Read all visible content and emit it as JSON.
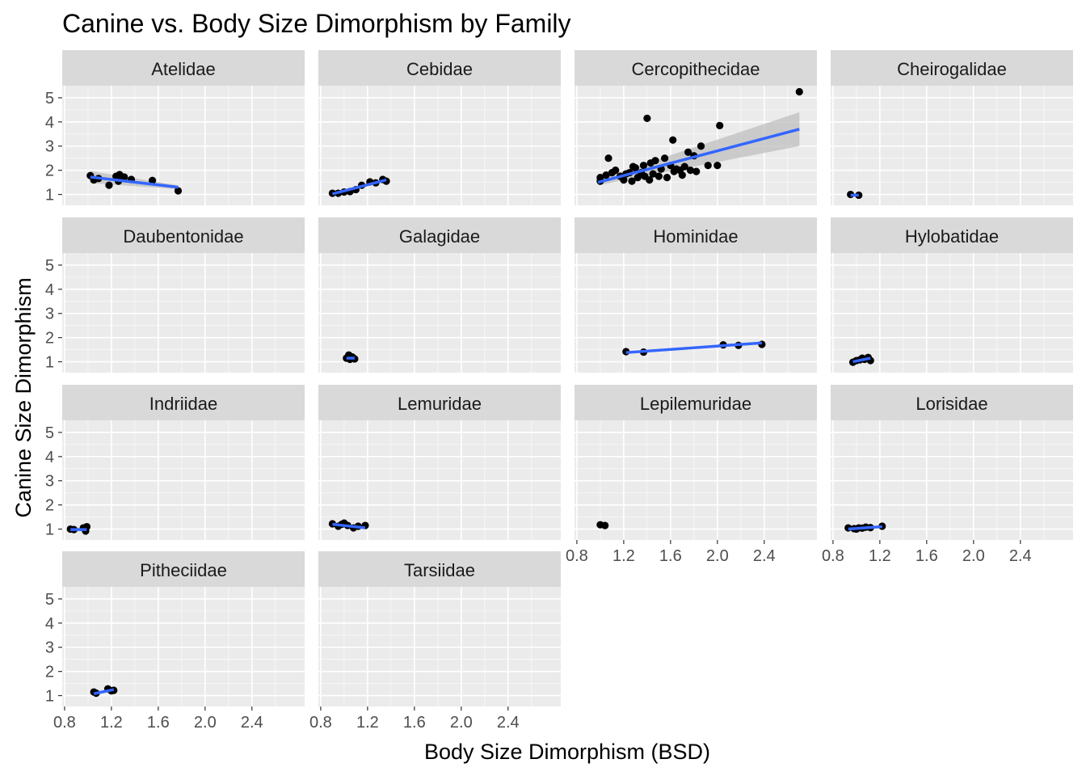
{
  "chart_data": {
    "type": "scatter",
    "title": "Canine vs. Body Size Dimorphism by Family",
    "xlabel": "Body Size Dimorphism (BSD)",
    "ylabel": "Canine Size Dimorphism",
    "xlim": [
      0.78,
      2.85
    ],
    "ylim": [
      0.55,
      5.5
    ],
    "x_ticks": [
      0.8,
      1.2,
      1.6,
      2.0,
      2.4
    ],
    "x_tick_labels": [
      "0.8",
      "1.2",
      "1.6",
      "2.0",
      "2.4"
    ],
    "y_ticks": [
      1,
      2,
      3,
      4,
      5
    ],
    "y_tick_labels": [
      "1",
      "2",
      "3",
      "4",
      "5"
    ],
    "grid": true,
    "smoother": "linear fit with confidence band",
    "colors": {
      "panel_bg": "#ebebeb",
      "grid_major": "#ffffff",
      "strip_bg": "#d9d9d9",
      "point": "#000000",
      "fit_line": "#3366ff",
      "ribbon": "#bfbfbf"
    },
    "facets": [
      {
        "name": "Atelidae",
        "points": [
          [
            1.02,
            1.78
          ],
          [
            1.05,
            1.6
          ],
          [
            1.09,
            1.66
          ],
          [
            1.18,
            1.38
          ],
          [
            1.24,
            1.75
          ],
          [
            1.26,
            1.55
          ],
          [
            1.27,
            1.82
          ],
          [
            1.31,
            1.72
          ],
          [
            1.37,
            1.62
          ],
          [
            1.55,
            1.58
          ],
          [
            1.77,
            1.15
          ]
        ],
        "fit": [
          [
            1.02,
            1.72
          ],
          [
            1.77,
            1.3
          ]
        ],
        "band": [
          0.25,
          0.08
        ]
      },
      {
        "name": "Cebidae",
        "points": [
          [
            0.9,
            1.05
          ],
          [
            0.95,
            1.05
          ],
          [
            1.0,
            1.1
          ],
          [
            1.05,
            1.12
          ],
          [
            1.1,
            1.2
          ],
          [
            1.15,
            1.38
          ],
          [
            1.22,
            1.52
          ],
          [
            1.27,
            1.48
          ],
          [
            1.33,
            1.62
          ],
          [
            1.36,
            1.55
          ]
        ],
        "fit": [
          [
            0.9,
            1.02
          ],
          [
            1.36,
            1.6
          ]
        ],
        "band": [
          0.08,
          0.03
        ]
      },
      {
        "name": "Cercopithecidae",
        "points": [
          [
            1.0,
            1.55
          ],
          [
            1.0,
            1.7
          ],
          [
            1.05,
            1.8
          ],
          [
            1.07,
            2.5
          ],
          [
            1.1,
            1.9
          ],
          [
            1.13,
            2.0
          ],
          [
            1.17,
            1.75
          ],
          [
            1.2,
            1.6
          ],
          [
            1.22,
            1.85
          ],
          [
            1.25,
            1.9
          ],
          [
            1.27,
            1.55
          ],
          [
            1.28,
            2.15
          ],
          [
            1.3,
            2.1
          ],
          [
            1.32,
            1.7
          ],
          [
            1.35,
            1.9
          ],
          [
            1.37,
            2.2
          ],
          [
            1.38,
            1.75
          ],
          [
            1.4,
            4.15
          ],
          [
            1.42,
            1.6
          ],
          [
            1.43,
            2.3
          ],
          [
            1.45,
            1.85
          ],
          [
            1.47,
            2.4
          ],
          [
            1.5,
            1.75
          ],
          [
            1.52,
            2.05
          ],
          [
            1.55,
            2.5
          ],
          [
            1.57,
            1.7
          ],
          [
            1.6,
            2.2
          ],
          [
            1.62,
            3.25
          ],
          [
            1.63,
            1.95
          ],
          [
            1.65,
            2.05
          ],
          [
            1.68,
            2.0
          ],
          [
            1.7,
            1.8
          ],
          [
            1.72,
            2.15
          ],
          [
            1.75,
            2.75
          ],
          [
            1.77,
            2.0
          ],
          [
            1.8,
            2.6
          ],
          [
            1.82,
            1.95
          ],
          [
            1.86,
            3.0
          ],
          [
            1.92,
            2.2
          ],
          [
            2.0,
            2.2
          ],
          [
            2.02,
            3.85
          ],
          [
            2.7,
            5.25
          ]
        ],
        "fit": [
          [
            0.98,
            1.5
          ],
          [
            2.7,
            3.7
          ]
        ],
        "band": [
          0.12,
          0.7
        ]
      },
      {
        "name": "Cheirogalidae",
        "points": [
          [
            0.95,
            1.0
          ],
          [
            1.02,
            0.97
          ]
        ],
        "fit": [
          [
            0.95,
            0.97
          ],
          [
            1.02,
            0.97
          ]
        ],
        "band": [
          0.03,
          0.03
        ]
      },
      {
        "name": "Daubentonidae",
        "points": [],
        "fit": null,
        "band": null
      },
      {
        "name": "Galagidae",
        "points": [
          [
            1.02,
            1.15
          ],
          [
            1.04,
            1.28
          ],
          [
            1.05,
            1.1
          ],
          [
            1.07,
            1.2
          ],
          [
            1.09,
            1.12
          ]
        ],
        "fit": [
          [
            1.02,
            1.15
          ],
          [
            1.09,
            1.15
          ]
        ],
        "band": [
          0.06,
          0.06
        ]
      },
      {
        "name": "Hominidae",
        "points": [
          [
            1.22,
            1.42
          ],
          [
            1.37,
            1.4
          ],
          [
            2.05,
            1.7
          ],
          [
            2.18,
            1.68
          ],
          [
            2.38,
            1.72
          ]
        ],
        "fit": [
          [
            1.22,
            1.38
          ],
          [
            2.38,
            1.78
          ]
        ],
        "band": [
          0.05,
          0.05
        ]
      },
      {
        "name": "Hylobatidae",
        "points": [
          [
            0.97,
            0.98
          ],
          [
            1.0,
            1.05
          ],
          [
            1.03,
            1.08
          ],
          [
            1.05,
            1.15
          ],
          [
            1.07,
            1.1
          ],
          [
            1.1,
            1.18
          ],
          [
            1.12,
            1.05
          ]
        ],
        "fit": [
          [
            0.97,
            1.0
          ],
          [
            1.12,
            1.15
          ]
        ],
        "band": [
          0.05,
          0.05
        ]
      },
      {
        "name": "Indriidae",
        "points": [
          [
            0.85,
            1.0
          ],
          [
            0.88,
            0.98
          ],
          [
            0.96,
            1.05
          ],
          [
            0.98,
            0.92
          ],
          [
            0.99,
            1.1
          ]
        ],
        "fit": [
          [
            0.85,
            0.98
          ],
          [
            0.99,
            0.98
          ]
        ],
        "band": [
          0.07,
          0.07
        ]
      },
      {
        "name": "Lemuridae",
        "points": [
          [
            0.9,
            1.22
          ],
          [
            0.95,
            1.12
          ],
          [
            0.98,
            1.2
          ],
          [
            1.0,
            1.25
          ],
          [
            1.03,
            1.15
          ],
          [
            1.08,
            1.05
          ],
          [
            1.12,
            1.12
          ],
          [
            1.18,
            1.15
          ]
        ],
        "fit": [
          [
            0.9,
            1.2
          ],
          [
            1.18,
            1.05
          ]
        ],
        "band": [
          0.05,
          0.05
        ]
      },
      {
        "name": "Lepilemuridae",
        "points": [
          [
            1.0,
            1.18
          ],
          [
            1.04,
            1.15
          ]
        ],
        "fit": null,
        "band": null
      },
      {
        "name": "Lorisidae",
        "points": [
          [
            0.93,
            1.05
          ],
          [
            0.98,
            1.02
          ],
          [
            1.0,
            1.0
          ],
          [
            1.02,
            1.05
          ],
          [
            1.05,
            1.04
          ],
          [
            1.08,
            1.08
          ],
          [
            1.12,
            1.06
          ],
          [
            1.22,
            1.12
          ]
        ],
        "fit": [
          [
            0.93,
            1.0
          ],
          [
            1.22,
            1.1
          ]
        ],
        "band": [
          0.04,
          0.04
        ]
      },
      {
        "name": "Pitheciidae",
        "points": [
          [
            1.05,
            1.15
          ],
          [
            1.07,
            1.1
          ],
          [
            1.17,
            1.28
          ],
          [
            1.2,
            1.2
          ],
          [
            1.22,
            1.22
          ]
        ],
        "fit": [
          [
            1.05,
            1.08
          ],
          [
            1.22,
            1.25
          ]
        ],
        "band": [
          0.05,
          0.05
        ]
      },
      {
        "name": "Tarsiidae",
        "points": [],
        "fit": null,
        "band": null
      }
    ]
  }
}
